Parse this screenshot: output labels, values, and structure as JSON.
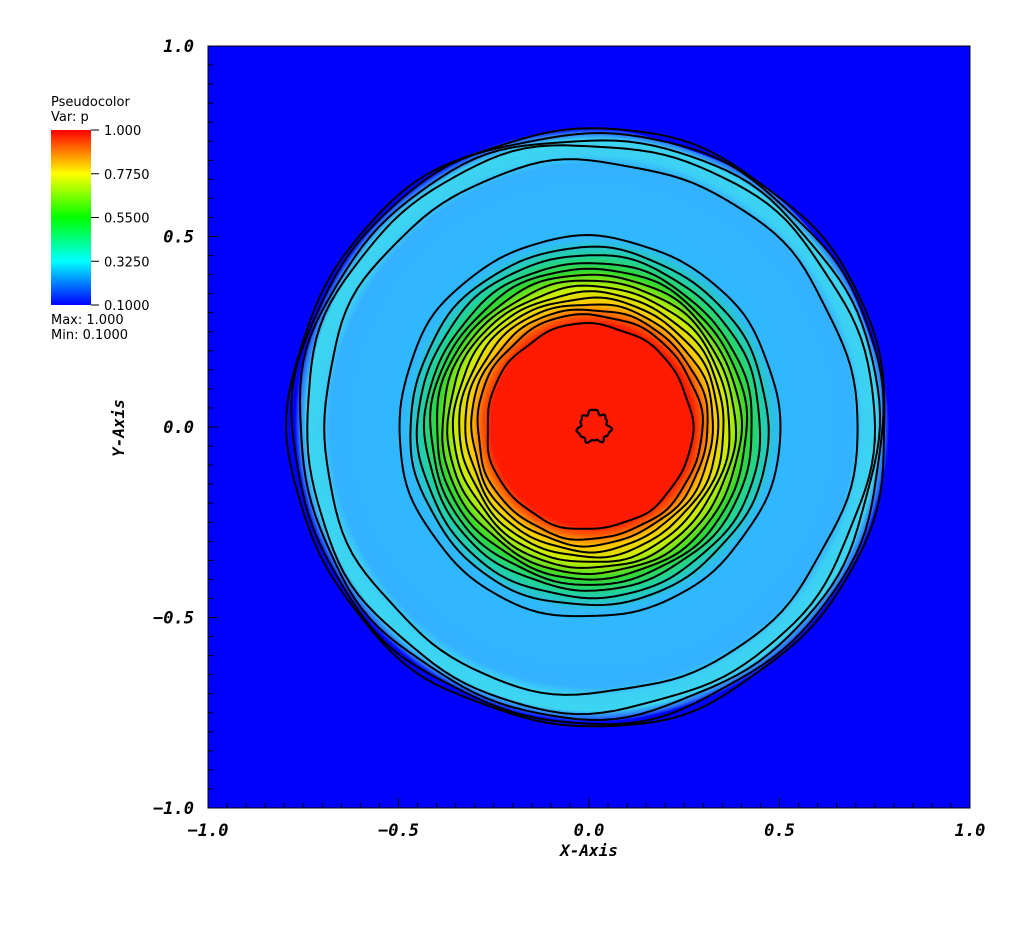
{
  "chart_data": {
    "type": "heatmap",
    "legend": {
      "title": "Pseudocolor",
      "var_label": "Var: p",
      "ticks": [
        "1.000",
        "0.7750",
        "0.5500",
        "0.3250",
        "0.1000"
      ],
      "tick_values": [
        1.0,
        0.775,
        0.55,
        0.325,
        0.1
      ],
      "max_label": "Max:  1.000",
      "min_label": "Min:  0.1000",
      "colors_top_to_bottom": [
        "#ff0000",
        "#ffff00",
        "#00ff00",
        "#00ffff",
        "#0000ff"
      ],
      "placement": "top-left"
    },
    "xlabel": "X-Axis",
    "ylabel": "Y-Axis",
    "xlim": [
      -1.0,
      1.0
    ],
    "ylim": [
      -1.0,
      1.0
    ],
    "x_ticks": [
      {
        "value": -1.0,
        "label": "−1.0"
      },
      {
        "value": -0.5,
        "label": "−0.5"
      },
      {
        "value": 0.0,
        "label": "0.0"
      },
      {
        "value": 0.5,
        "label": "0.5"
      },
      {
        "value": 1.0,
        "label": "1.0"
      }
    ],
    "y_ticks": [
      {
        "value": 1.0,
        "label": "1.0"
      },
      {
        "value": 0.5,
        "label": "0.5"
      },
      {
        "value": 0.0,
        "label": "0.0"
      },
      {
        "value": -0.5,
        "label": "−0.5"
      },
      {
        "value": -1.0,
        "label": "−1.0"
      }
    ],
    "field": {
      "description_values": "radially symmetric pressure field centered at origin",
      "background_value": 0.1,
      "shell_outer_radius": 0.78,
      "shell_inner_radius": 0.7,
      "shell_value": 0.36,
      "plateau_value": 0.3,
      "inner_ramp_outer_radius": 0.5,
      "core_radius": 0.27,
      "core_value": 1.0
    },
    "contour_radii": [
      0.04,
      0.27,
      0.295,
      0.31,
      0.325,
      0.34,
      0.355,
      0.37,
      0.385,
      0.4,
      0.415,
      0.43,
      0.45,
      0.47,
      0.5,
      0.7,
      0.745,
      0.76,
      0.775,
      0.785
    ],
    "colors": {
      "background_blue": "#0000ff",
      "plateau_blue": "#30b4ff",
      "shell_cyan": "#3cd6f4",
      "core_red": "#ff0000",
      "contour": "#000000"
    }
  }
}
